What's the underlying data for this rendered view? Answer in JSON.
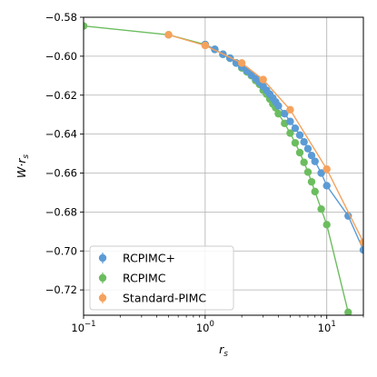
{
  "chart_data": {
    "type": "line",
    "title": "",
    "xlabel": "r_s",
    "ylabel": "W·r_s",
    "xscale": "log",
    "xlim": [
      0.1,
      20
    ],
    "ylim": [
      -0.733,
      -0.58
    ],
    "xticks": [
      {
        "value": 0.1,
        "base": "10",
        "exp": "−1"
      },
      {
        "value": 1,
        "base": "10",
        "exp": "0"
      },
      {
        "value": 10,
        "base": "10",
        "exp": "1"
      }
    ],
    "yticks": [
      {
        "value": -0.58,
        "label": "−0.58"
      },
      {
        "value": -0.6,
        "label": "−0.60"
      },
      {
        "value": -0.62,
        "label": "−0.62"
      },
      {
        "value": -0.64,
        "label": "−0.64"
      },
      {
        "value": -0.66,
        "label": "−0.66"
      },
      {
        "value": -0.68,
        "label": "−0.68"
      },
      {
        "value": -0.7,
        "label": "−0.70"
      },
      {
        "value": -0.72,
        "label": "−0.72"
      }
    ],
    "grid": true,
    "legend_position": "bottom-left",
    "series": [
      {
        "name": "RCPIMC+",
        "color": "#5b9bd5",
        "points": [
          [
            1.0,
            -0.594
          ],
          [
            1.2,
            -0.5965
          ],
          [
            1.4,
            -0.599
          ],
          [
            1.6,
            -0.601
          ],
          [
            1.8,
            -0.6035
          ],
          [
            2.0,
            -0.6055
          ],
          [
            2.2,
            -0.6075
          ],
          [
            2.4,
            -0.6095
          ],
          [
            2.6,
            -0.6115
          ],
          [
            2.8,
            -0.6135
          ],
          [
            3.0,
            -0.6155
          ],
          [
            3.2,
            -0.6175
          ],
          [
            3.4,
            -0.6195
          ],
          [
            3.6,
            -0.6215
          ],
          [
            3.8,
            -0.6235
          ],
          [
            4.0,
            -0.6255
          ],
          [
            4.5,
            -0.6295
          ],
          [
            5.0,
            -0.6335
          ],
          [
            5.5,
            -0.637
          ],
          [
            6.0,
            -0.6405
          ],
          [
            6.5,
            -0.644
          ],
          [
            7.0,
            -0.6475
          ],
          [
            7.5,
            -0.651
          ],
          [
            8.0,
            -0.654
          ],
          [
            9.0,
            -0.66
          ],
          [
            10.0,
            -0.6665
          ],
          [
            15.0,
            -0.682
          ],
          [
            20.0,
            -0.6995
          ]
        ]
      },
      {
        "name": "RCPIMC",
        "color": "#6cbd5f",
        "points": [
          [
            0.1,
            -0.5845
          ],
          [
            0.5,
            -0.589
          ],
          [
            1.0,
            -0.594
          ],
          [
            1.2,
            -0.5965
          ],
          [
            1.4,
            -0.599
          ],
          [
            1.6,
            -0.601
          ],
          [
            1.8,
            -0.6035
          ],
          [
            2.0,
            -0.606
          ],
          [
            2.2,
            -0.608
          ],
          [
            2.4,
            -0.61
          ],
          [
            2.6,
            -0.6125
          ],
          [
            2.8,
            -0.6145
          ],
          [
            3.0,
            -0.6175
          ],
          [
            3.2,
            -0.6195
          ],
          [
            3.4,
            -0.622
          ],
          [
            3.6,
            -0.6245
          ],
          [
            3.8,
            -0.6265
          ],
          [
            4.0,
            -0.6295
          ],
          [
            4.5,
            -0.6345
          ],
          [
            5.0,
            -0.6395
          ],
          [
            5.5,
            -0.6445
          ],
          [
            6.0,
            -0.6495
          ],
          [
            6.5,
            -0.6545
          ],
          [
            7.0,
            -0.6595
          ],
          [
            7.5,
            -0.6645
          ],
          [
            8.0,
            -0.6695
          ],
          [
            9.0,
            -0.6785
          ],
          [
            10.0,
            -0.6865
          ],
          [
            15.0,
            -0.7315
          ]
        ]
      },
      {
        "name": "Standard-PIMC",
        "color": "#f5a25d",
        "points": [
          [
            0.5,
            -0.589
          ],
          [
            1.0,
            -0.5945
          ],
          [
            2.0,
            -0.6035
          ],
          [
            3.0,
            -0.612
          ],
          [
            5.0,
            -0.6275
          ],
          [
            10.0,
            -0.658
          ],
          [
            20.0,
            -0.6955
          ]
        ]
      }
    ]
  }
}
